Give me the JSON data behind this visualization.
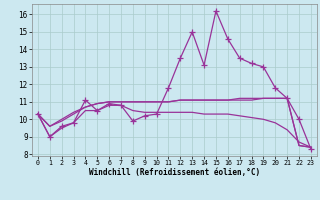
{
  "x": [
    0,
    1,
    2,
    3,
    4,
    5,
    6,
    7,
    8,
    9,
    10,
    11,
    12,
    13,
    14,
    15,
    16,
    17,
    18,
    19,
    20,
    21,
    22,
    23
  ],
  "y_main": [
    10.3,
    9.0,
    9.6,
    9.8,
    11.1,
    10.5,
    10.9,
    10.8,
    9.9,
    10.2,
    10.3,
    11.8,
    13.5,
    15.0,
    13.1,
    16.2,
    14.6,
    13.5,
    13.2,
    13.0,
    11.8,
    11.2,
    10.0,
    8.3
  ],
  "y_line2": [
    10.3,
    9.0,
    9.5,
    9.8,
    10.5,
    10.5,
    10.8,
    10.8,
    10.5,
    10.4,
    10.4,
    10.4,
    10.4,
    10.4,
    10.3,
    10.3,
    10.3,
    10.2,
    10.1,
    10.0,
    9.8,
    9.4,
    8.7,
    8.4
  ],
  "y_line3": [
    10.3,
    9.6,
    9.9,
    10.3,
    10.7,
    10.9,
    11.0,
    11.0,
    11.0,
    11.0,
    11.0,
    11.0,
    11.1,
    11.1,
    11.1,
    11.1,
    11.1,
    11.1,
    11.1,
    11.2,
    11.2,
    11.2,
    8.5,
    8.4
  ],
  "y_line4": [
    10.3,
    9.6,
    10.0,
    10.4,
    10.7,
    10.9,
    11.0,
    11.0,
    11.0,
    11.0,
    11.0,
    11.0,
    11.1,
    11.1,
    11.1,
    11.1,
    11.1,
    11.2,
    11.2,
    11.2,
    11.2,
    11.2,
    8.5,
    8.4
  ],
  "color": "#993399",
  "bg_color": "#cce8f0",
  "grid_color": "#aacccc",
  "xlabel": "Windchill (Refroidissement éolien,°C)",
  "xlim": [
    -0.5,
    23.5
  ],
  "ylim": [
    7.9,
    16.6
  ],
  "yticks": [
    8,
    9,
    10,
    11,
    12,
    13,
    14,
    15,
    16
  ],
  "xticks": [
    0,
    1,
    2,
    3,
    4,
    5,
    6,
    7,
    8,
    9,
    10,
    11,
    12,
    13,
    14,
    15,
    16,
    17,
    18,
    19,
    20,
    21,
    22,
    23
  ],
  "marker": "+",
  "markersize": 4,
  "linewidth": 0.9
}
